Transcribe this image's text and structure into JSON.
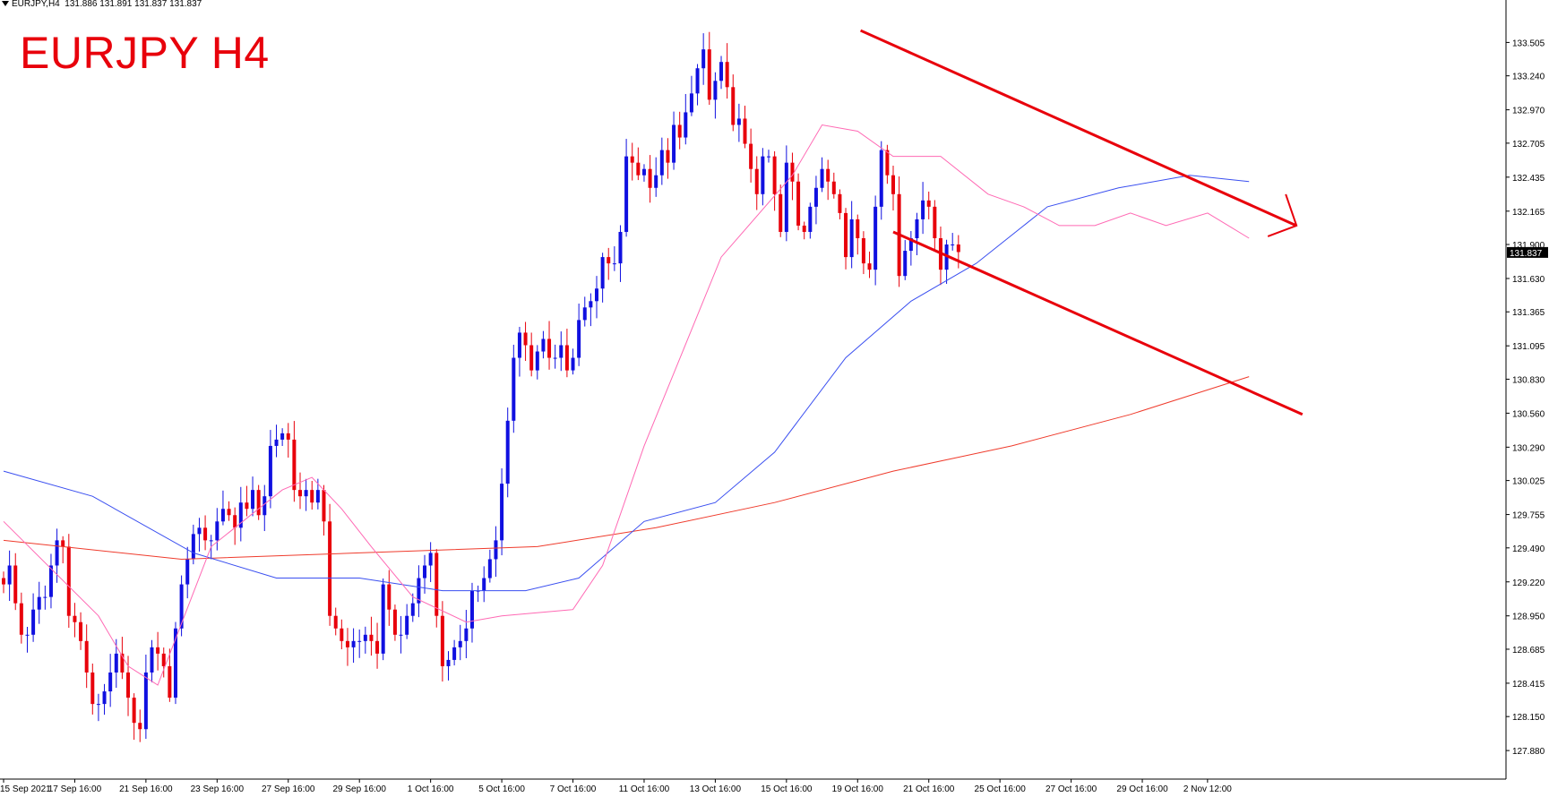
{
  "header": {
    "symbol": "EURJPY,H4",
    "ohlc": "131.886 131.891 131.837 131.837"
  },
  "overlay_title": "EURJPY H4",
  "colors": {
    "bull": "#1010e0",
    "bear": "#e8000b",
    "ma_fast": "#ff69b4",
    "ma_mid": "#3a4ff0",
    "ma_slow": "#ef3b2c",
    "channel": "#e8000b",
    "axis": "#000000",
    "current_price_bg": "#000000",
    "current_price_text": "#ffffff"
  },
  "chart_data": {
    "type": "candlestick",
    "title": "EURJPY H4",
    "ylim": [
      127.76,
      133.7
    ],
    "price_ticks": [
      "133.505",
      "133.240",
      "132.970",
      "132.705",
      "132.435",
      "132.165",
      "131.900",
      "131.630",
      "131.365",
      "131.095",
      "130.830",
      "130.560",
      "130.290",
      "130.025",
      "129.755",
      "129.490",
      "129.220",
      "128.950",
      "128.685",
      "128.415",
      "128.150",
      "127.880"
    ],
    "current_price": "131.837",
    "x_labels": [
      "15 Sep 2021",
      "17 Sep 16:00",
      "21 Sep 16:00",
      "23 Sep 16:00",
      "27 Sep 16:00",
      "29 Sep 16:00",
      "1 Oct 16:00",
      "5 Oct 16:00",
      "7 Oct 16:00",
      "11 Oct 16:00",
      "13 Oct 16:00",
      "15 Oct 16:00",
      "19 Oct 16:00",
      "21 Oct 16:00",
      "25 Oct 16:00",
      "27 Oct 16:00",
      "29 Oct 16:00",
      "2 Nov 12:00"
    ],
    "x_label_bars": [
      0,
      12,
      24,
      36,
      48,
      60,
      72,
      84,
      96,
      108,
      120,
      132,
      144,
      156,
      168,
      180,
      192,
      203
    ],
    "closes": [
      129.2,
      129.35,
      129.05,
      128.8,
      128.8,
      129.0,
      129.1,
      129.1,
      129.35,
      129.55,
      129.5,
      128.95,
      128.9,
      128.75,
      128.5,
      128.25,
      128.25,
      128.35,
      128.5,
      128.65,
      128.5,
      128.3,
      128.1,
      128.05,
      128.5,
      128.7,
      128.65,
      128.55,
      128.3,
      128.85,
      129.2,
      129.4,
      129.6,
      129.65,
      129.55,
      129.55,
      129.7,
      129.8,
      129.75,
      129.65,
      129.85,
      129.8,
      129.95,
      129.75,
      129.9,
      130.3,
      130.35,
      130.4,
      130.35,
      129.95,
      129.9,
      129.95,
      129.85,
      129.95,
      129.7,
      128.95,
      128.85,
      128.75,
      128.7,
      128.75,
      128.75,
      128.8,
      128.75,
      128.65,
      129.2,
      129.0,
      128.8,
      128.8,
      128.95,
      129.05,
      129.25,
      129.35,
      129.45,
      128.95,
      128.55,
      128.6,
      128.7,
      128.75,
      128.85,
      129.15,
      129.15,
      129.25,
      129.4,
      129.55,
      130.0,
      130.5,
      131.0,
      131.2,
      131.1,
      130.9,
      131.05,
      131.15,
      131.0,
      131.0,
      131.1,
      130.9,
      131.0,
      131.3,
      131.4,
      131.45,
      131.55,
      131.8,
      131.75,
      131.75,
      132.0,
      132.6,
      132.55,
      132.45,
      132.5,
      132.35,
      132.45,
      132.65,
      132.55,
      132.85,
      132.75,
      132.95,
      133.1,
      133.3,
      133.45,
      133.05,
      133.2,
      133.35,
      133.15,
      132.85,
      132.9,
      132.7,
      132.5,
      132.3,
      132.6,
      132.6,
      132.3,
      132.0,
      132.55,
      132.4,
      132.05,
      132.0,
      132.2,
      132.35,
      132.5,
      132.4,
      132.3,
      132.15,
      131.8,
      132.1,
      131.95,
      131.75,
      131.7,
      132.2,
      132.65,
      132.45,
      132.3,
      131.65,
      131.85,
      131.95,
      132.1,
      132.25,
      132.2,
      131.95,
      131.7,
      131.9,
      131.9,
      131.84
    ],
    "ma_fast_points": [
      [
        0,
        129.7
      ],
      [
        16,
        128.95
      ],
      [
        21,
        128.55
      ],
      [
        26,
        128.4
      ],
      [
        35,
        129.5
      ],
      [
        47,
        129.95
      ],
      [
        52,
        130.05
      ],
      [
        57,
        129.8
      ],
      [
        62,
        129.5
      ],
      [
        69,
        129.1
      ],
      [
        78,
        128.9
      ],
      [
        84,
        128.95
      ],
      [
        96,
        129.0
      ],
      [
        101,
        129.35
      ],
      [
        108,
        130.3
      ],
      [
        121,
        131.8
      ],
      [
        133,
        132.45
      ],
      [
        138,
        132.85
      ],
      [
        144,
        132.8
      ],
      [
        150,
        132.6
      ],
      [
        158,
        132.6
      ],
      [
        166,
        132.3
      ],
      [
        172,
        132.2
      ],
      [
        178,
        132.05
      ],
      [
        184,
        132.05
      ],
      [
        190,
        132.15
      ],
      [
        196,
        132.05
      ],
      [
        203,
        132.15
      ],
      [
        210,
        131.95
      ]
    ],
    "ma_mid_points": [
      [
        0,
        130.1
      ],
      [
        15,
        129.9
      ],
      [
        32,
        129.45
      ],
      [
        46,
        129.25
      ],
      [
        60,
        129.25
      ],
      [
        74,
        129.15
      ],
      [
        88,
        129.15
      ],
      [
        97,
        129.25
      ],
      [
        108,
        129.7
      ],
      [
        120,
        129.85
      ],
      [
        130,
        130.25
      ],
      [
        142,
        131.0
      ],
      [
        153,
        131.45
      ],
      [
        164,
        131.75
      ],
      [
        176,
        132.2
      ],
      [
        188,
        132.35
      ],
      [
        200,
        132.45
      ],
      [
        210,
        132.4
      ]
    ],
    "ma_slow_points": [
      [
        0,
        129.55
      ],
      [
        30,
        129.4
      ],
      [
        60,
        129.45
      ],
      [
        90,
        129.5
      ],
      [
        110,
        129.65
      ],
      [
        130,
        129.85
      ],
      [
        150,
        130.1
      ],
      [
        170,
        130.3
      ],
      [
        190,
        130.55
      ],
      [
        210,
        130.85
      ]
    ],
    "channel_upper": [
      [
        144.5,
        133.6
      ],
      [
        218,
        132.05
      ]
    ],
    "channel_lower": [
      [
        150,
        132.0
      ],
      [
        219,
        130.55
      ]
    ],
    "arrow_tip": [
      218,
      132.05
    ]
  }
}
